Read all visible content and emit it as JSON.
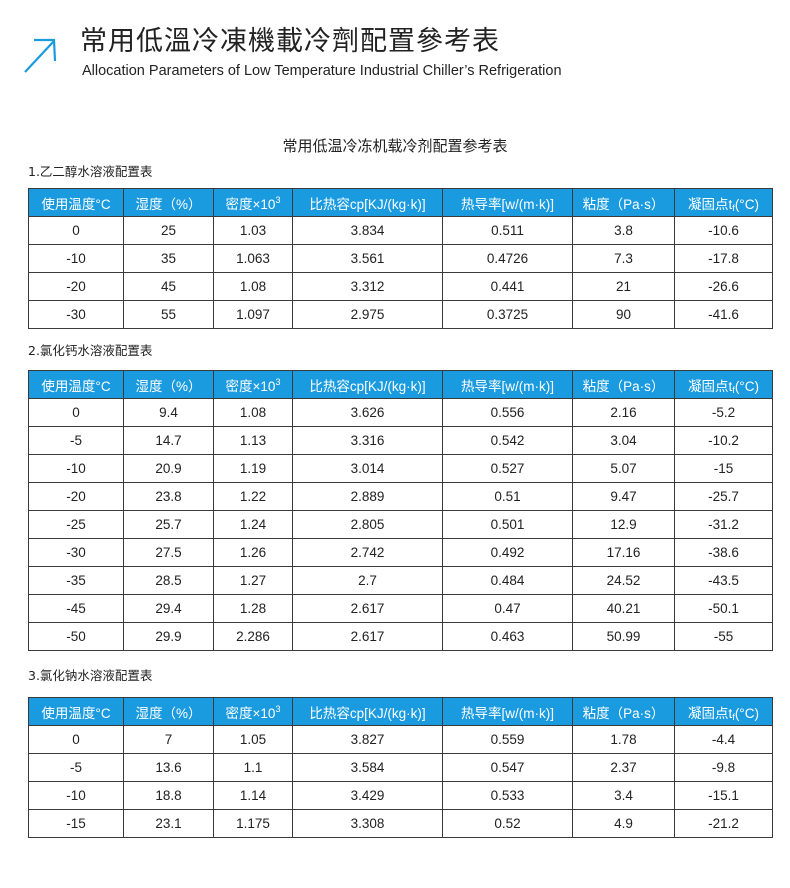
{
  "header": {
    "icon": "arrow-up-right-icon",
    "accent_color": "#1a9be0",
    "title_cn": "常用低溫冷凍機載冷劑配置參考表",
    "title_en": "Allocation Parameters of Low Temperature Industrial Chiller’s Refrigeration"
  },
  "document_title": "常用低温冷冻机载冷剂配置参考表",
  "columns": [
    {
      "main": "使用温度°C"
    },
    {
      "main": "湿度（%）"
    },
    {
      "main": "密度×10",
      "sup": "3"
    },
    {
      "main": "比热容cp[KJ/(kg·k)]"
    },
    {
      "main": "热导率[w/(m·k)]"
    },
    {
      "main": "粘度（Pa·s）"
    },
    {
      "main": "凝固点t",
      "sub": "f",
      "tail": "(°C)"
    }
  ],
  "tables": [
    {
      "label": "1.乙二醇水溶液配置表",
      "rows": [
        [
          "0",
          "25",
          "1.03",
          "3.834",
          "0.511",
          "3.8",
          "-10.6"
        ],
        [
          "-10",
          "35",
          "1.063",
          "3.561",
          "0.4726",
          "7.3",
          "-17.8"
        ],
        [
          "-20",
          "45",
          "1.08",
          "3.312",
          "0.441",
          "21",
          "-26.6"
        ],
        [
          "-30",
          "55",
          "1.097",
          "2.975",
          "0.3725",
          "90",
          "-41.6"
        ]
      ]
    },
    {
      "label": "2.氯化钙水溶液配置表",
      "rows": [
        [
          "0",
          "9.4",
          "1.08",
          "3.626",
          "0.556",
          "2.16",
          "-5.2"
        ],
        [
          "-5",
          "14.7",
          "1.13",
          "3.316",
          "0.542",
          "3.04",
          "-10.2"
        ],
        [
          "-10",
          "20.9",
          "1.19",
          "3.014",
          "0.527",
          "5.07",
          "-15"
        ],
        [
          "-20",
          "23.8",
          "1.22",
          "2.889",
          "0.51",
          "9.47",
          "-25.7"
        ],
        [
          "-25",
          "25.7",
          "1.24",
          "2.805",
          "0.501",
          "12.9",
          "-31.2"
        ],
        [
          "-30",
          "27.5",
          "1.26",
          "2.742",
          "0.492",
          "17.16",
          "-38.6"
        ],
        [
          "-35",
          "28.5",
          "1.27",
          "2.7",
          "0.484",
          "24.52",
          "-43.5"
        ],
        [
          "-45",
          "29.4",
          "1.28",
          "2.617",
          "0.47",
          "40.21",
          "-50.1"
        ],
        [
          "-50",
          "29.9",
          "2.286",
          "2.617",
          "0.463",
          "50.99",
          "-55"
        ]
      ]
    },
    {
      "label": "3.氯化钠水溶液配置表",
      "rows": [
        [
          "0",
          "7",
          "1.05",
          "3.827",
          "0.559",
          "1.78",
          "-4.4"
        ],
        [
          "-5",
          "13.6",
          "1.1",
          "3.584",
          "0.547",
          "2.37",
          "-9.8"
        ],
        [
          "-10",
          "18.8",
          "1.14",
          "3.429",
          "0.533",
          "3.4",
          "-15.1"
        ],
        [
          "-15",
          "23.1",
          "1.175",
          "3.308",
          "0.52",
          "4.9",
          "-21.2"
        ]
      ]
    }
  ]
}
